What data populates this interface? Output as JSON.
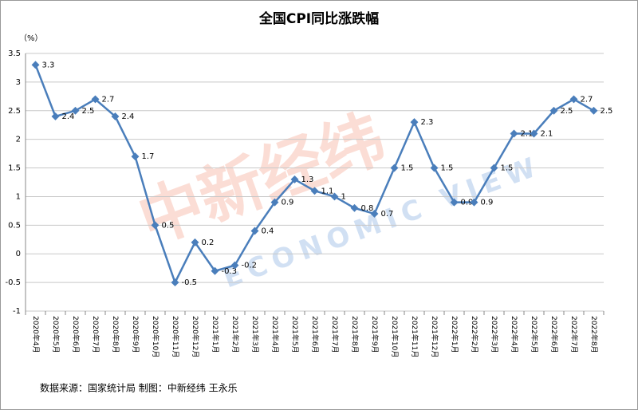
{
  "chart_data": {
    "type": "line",
    "title": "全国CPI同比涨跌幅",
    "y_unit": "（%）",
    "categories": [
      "2020年4月",
      "2020年5月",
      "2020年6月",
      "2020年7月",
      "2020年8月",
      "2020年9月",
      "2020年10月",
      "2020年11月",
      "2020年12月",
      "2021年1月",
      "2021年2月",
      "2021年3月",
      "2021年4月",
      "2021年5月",
      "2021年6月",
      "2021年7月",
      "2021年8月",
      "2021年9月",
      "2021年10月",
      "2021年11月",
      "2021年12月",
      "2022年1月",
      "2022年2月",
      "2022年3月",
      "2022年4月",
      "2022年5月",
      "2022年6月",
      "2022年7月",
      "2022年8月"
    ],
    "values": [
      3.3,
      2.4,
      2.5,
      2.7,
      2.4,
      1.7,
      0.5,
      -0.5,
      0.2,
      -0.3,
      -0.2,
      0.4,
      0.9,
      1.3,
      1.1,
      1,
      0.8,
      0.7,
      1.5,
      2.3,
      1.5,
      0.9,
      0.9,
      1.5,
      2.1,
      2.1,
      2.5,
      2.7,
      2.5
    ],
    "color": "#4a7ebb",
    "ylim": [
      -1,
      3.5
    ],
    "yticks": [
      -1,
      -0.5,
      0,
      0.5,
      1,
      1.5,
      2,
      2.5,
      3,
      3.5
    ],
    "grid": true,
    "source": "数据来源：国家统计局  制图：中新经纬  王永乐",
    "watermark": [
      "中新经纬",
      "ECONOMIC VIEW"
    ]
  }
}
